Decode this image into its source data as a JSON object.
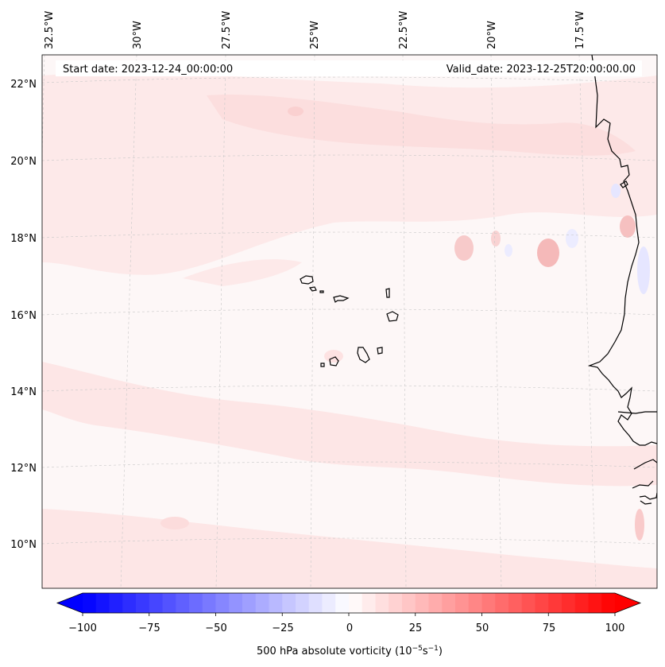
{
  "header": {
    "start_date": "Start date: 2023-12-24_00:00:00",
    "valid_date": "Valid_date: 2023-12-25T20:00:00.00"
  },
  "map": {
    "lon_labels": [
      "32.5°W",
      "30°W",
      "27.5°W",
      "25°W",
      "22.5°W",
      "20°W",
      "17.5°W"
    ],
    "lat_labels": [
      "22°N",
      "20°N",
      "18°N",
      "16°N",
      "14°N",
      "12°N",
      "10°N"
    ],
    "colors": {
      "background": "#fdf7f7",
      "light_red": "#fde6e6",
      "mid_red": "#f9caca",
      "light_blue": "#eeeeff",
      "coast": "#000000",
      "grid": "#cccccc"
    }
  },
  "colorbar": {
    "label": "500 hPa absolute vorticity (10",
    "label_exp1": "−5",
    "label_mid": "s",
    "label_exp2": "−1",
    "label_end": ")",
    "min": -100,
    "max": 100,
    "ticks": [
      "−100",
      "−75",
      "−50",
      "−25",
      "0",
      "25",
      "50",
      "75",
      "100"
    ],
    "min_color": "#0000ff",
    "mid_color": "#ffffff",
    "max_color": "#ff0000"
  }
}
